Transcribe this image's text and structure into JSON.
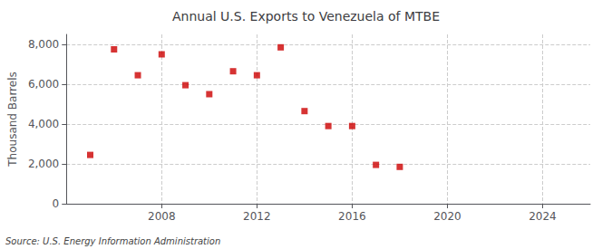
{
  "chart_data": {
    "type": "scatter",
    "title": "Annual U.S. Exports to Venezuela of MTBE",
    "ylabel": "Thousand Barrels",
    "annotation": "Source: U.S. Energy Information Administration",
    "x": [
      2005,
      2006,
      2007,
      2008,
      2009,
      2010,
      2011,
      2012,
      2013,
      2014,
      2015,
      2016,
      2017,
      2018
    ],
    "values": [
      2450,
      7750,
      6450,
      7500,
      5950,
      5500,
      6650,
      6450,
      7850,
      4650,
      3900,
      3900,
      1950,
      1850
    ],
    "color": "#cc0000",
    "marker": "square",
    "xlim": [
      2004,
      2026
    ],
    "ylim": [
      0,
      8500
    ],
    "xticks": [
      2008,
      2012,
      2016,
      2020,
      2024
    ],
    "yticks": [
      0,
      {
        "value": 2000,
        "label": "2,000"
      },
      {
        "value": 4000,
        "label": "4,000"
      },
      {
        "value": 6000,
        "label": "6,000"
      },
      {
        "value": 8000,
        "label": "8,000"
      }
    ],
    "grid": true
  }
}
